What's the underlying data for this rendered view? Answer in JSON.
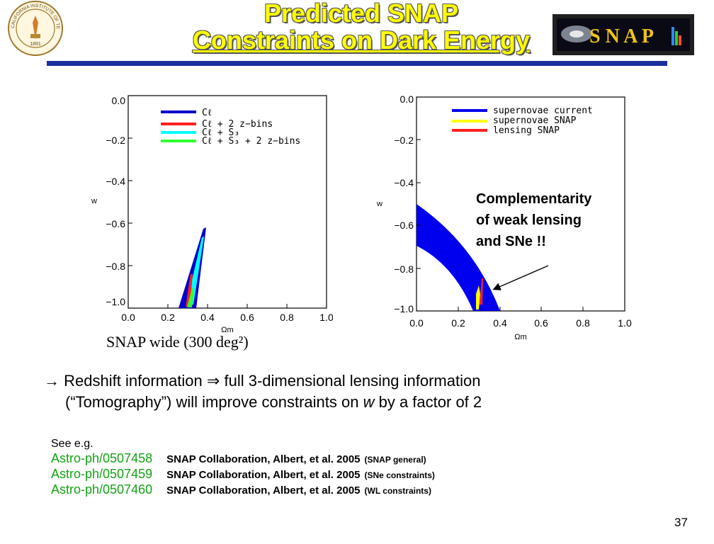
{
  "title": {
    "line1": "Predicted SNAP",
    "line2": "Constraints on Dark Energy"
  },
  "seal": {
    "top_text": "CALIFORNIA INSTITUTE OF TECHNOLOGY",
    "year": "1891"
  },
  "logo": {
    "text": "S N A P"
  },
  "left_plot": {
    "xlabel": "Ωm",
    "ylabel": "w",
    "x_ticks": [
      "0.0",
      "0.2",
      "0.4",
      "0.6",
      "0.8",
      "1.0"
    ],
    "y_ticks": [
      "0.0",
      "−0.2",
      "−0.4",
      "−0.6",
      "−0.8",
      "−1.0"
    ],
    "legend": [
      {
        "label": "Cℓ",
        "color": "#0000cc"
      },
      {
        "label": "Cℓ + 2 z−bins",
        "color": "#ff2020"
      },
      {
        "label": "Cℓ + S₃",
        "color": "#00ffff"
      },
      {
        "label": "Cℓ + S₃ + 2 z−bins",
        "color": "#33ff33"
      }
    ],
    "caption": "SNAP wide (300 deg²)"
  },
  "right_plot": {
    "xlabel": "Ωm",
    "ylabel": "w",
    "x_ticks": [
      "0.0",
      "0.2",
      "0.4",
      "0.6",
      "0.8",
      "1.0"
    ],
    "y_ticks": [
      "0.0",
      "−0.2",
      "−0.4",
      "−0.6",
      "−0.8",
      "−1.0"
    ],
    "legend": [
      {
        "label": "supernovae current",
        "color": "#0000ee"
      },
      {
        "label": "supernovae SNAP",
        "color": "#ffff00"
      },
      {
        "label": "lensing SNAP",
        "color": "#ff2020"
      }
    ]
  },
  "annotation": {
    "line1": "Complementarity",
    "line2": "of weak lensing",
    "line3": "and SNe !!"
  },
  "bullet": {
    "symbol": "→",
    "line1_a": "Redshift information",
    "arrow": "⇒",
    "line1_b": "full 3-dimensional lensing information",
    "line2_a": "(“Tomography”) will improve constraints on",
    "line2_w": "w",
    "line2_b": "by a factor of 2"
  },
  "refs": {
    "intro": "See e.g.",
    "items": [
      {
        "id": "Astro-ph/0507458",
        "authors": "SNAP Collaboration, Albert, et al. 2005",
        "note": "(SNAP general)"
      },
      {
        "id": "Astro-ph/0507459",
        "authors": "SNAP Collaboration, Albert, et al. 2005",
        "note": "(SNe constraints)"
      },
      {
        "id": "Astro-ph/0507460",
        "authors": "SNAP Collaboration, Albert, et al. 2005",
        "note": "(WL constraints)"
      }
    ]
  },
  "page_number": "37"
}
